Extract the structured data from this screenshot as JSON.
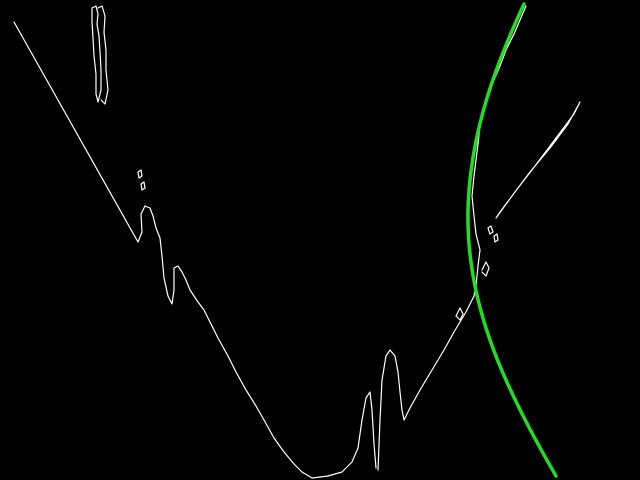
{
  "image": {
    "background_color": "#000000",
    "edge_color": "#ffffff",
    "overlay_color": "#22dd22",
    "overlay_shape": "arc"
  }
}
